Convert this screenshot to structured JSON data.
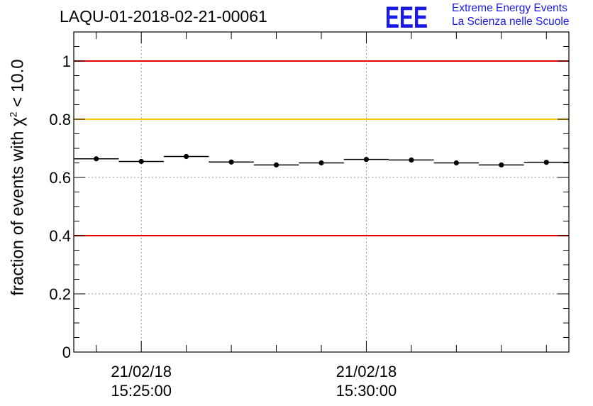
{
  "title": "LAQU-01-2018-02-21-00061",
  "logo": {
    "letters": "EEE",
    "line1": "Extreme Energy Events",
    "line2": "La Scienza nelle Scuole",
    "color": "#1a1ae6"
  },
  "chart_data": {
    "type": "scatter",
    "title": "LAQU-01-2018-02-21-00061",
    "ylabel": {
      "prefix": "fraction of events with ",
      "symbol": "χ",
      "superscript": "2",
      "suffix": " < 10.0"
    },
    "xlabel": "",
    "ylim": [
      0,
      1.1
    ],
    "xlim_minutes": [
      0,
      11
    ],
    "y_ticks": [
      "0",
      "0.2",
      "0.4",
      "0.6",
      "0.8",
      "1"
    ],
    "y_tick_values": [
      0,
      0.2,
      0.4,
      0.6,
      0.8,
      1.0
    ],
    "x_ticks": [
      {
        "minute": 1.5,
        "date": "21/02/18",
        "time": "15:25:00"
      },
      {
        "minute": 6.5,
        "date": "21/02/18",
        "time": "15:30:00"
      }
    ],
    "grid": true,
    "reference_lines": [
      {
        "y": 1.0,
        "color": "#e60000"
      },
      {
        "y": 0.8,
        "color": "#ffc800"
      },
      {
        "y": 0.4,
        "color": "#e60000"
      }
    ],
    "points": [
      {
        "x0": 0,
        "x1": 1,
        "y": 0.664
      },
      {
        "x0": 1,
        "x1": 2,
        "y": 0.655
      },
      {
        "x0": 2,
        "x1": 3,
        "y": 0.672
      },
      {
        "x0": 3,
        "x1": 4,
        "y": 0.653
      },
      {
        "x0": 4,
        "x1": 5,
        "y": 0.643
      },
      {
        "x0": 5,
        "x1": 6,
        "y": 0.65
      },
      {
        "x0": 6,
        "x1": 7,
        "y": 0.662
      },
      {
        "x0": 7,
        "x1": 8,
        "y": 0.66
      },
      {
        "x0": 8,
        "x1": 9,
        "y": 0.65
      },
      {
        "x0": 9,
        "x1": 10,
        "y": 0.643
      },
      {
        "x0": 10,
        "x1": 11,
        "y": 0.652
      }
    ]
  }
}
